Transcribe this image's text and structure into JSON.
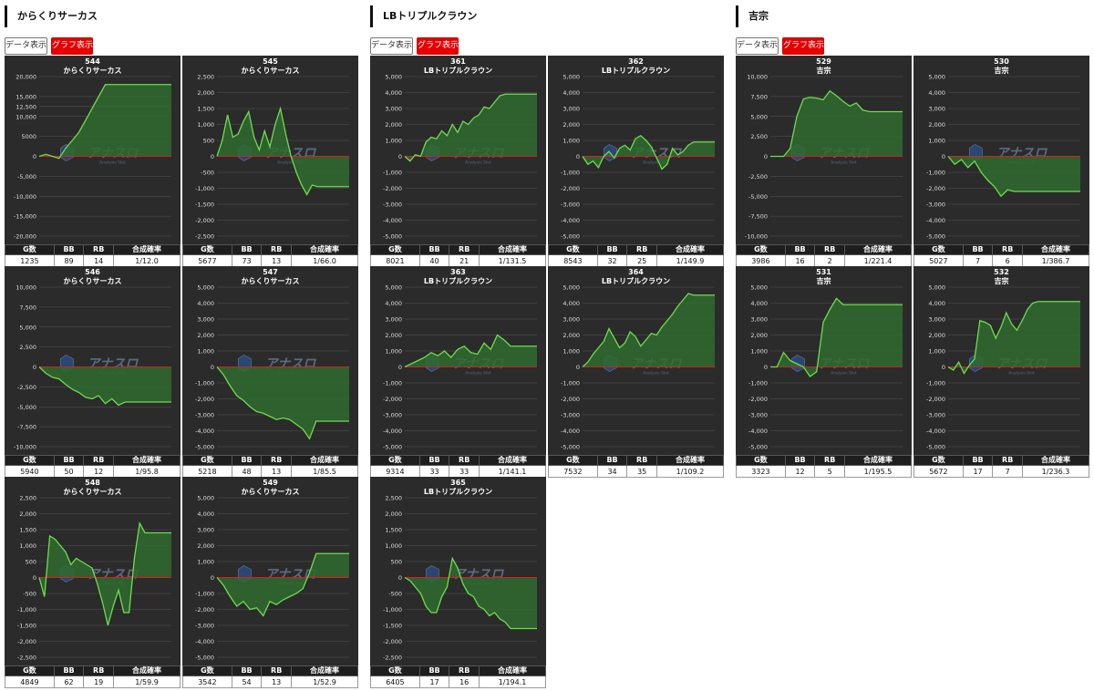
{
  "columns_labels": {
    "data_button": "データ表示",
    "graph_button": "グラフ表示"
  },
  "table_headers": [
    "G数",
    "BB",
    "RB",
    "合成確率"
  ],
  "colors": {
    "chart_bg": "#2b2b2b",
    "line": "#6fdc4f",
    "fill": "#2f6b2f",
    "zero_line": "#d42020",
    "active_button": "#e60000"
  },
  "watermark": {
    "text": "アナスロ",
    "subtext": "Analysis Slot"
  },
  "groups": [
    {
      "title": "からくりサーカス",
      "panels": [
        {
          "number": "544",
          "name": "からくりサーカス",
          "g": "1235",
          "bb": "89",
          "rb": "14",
          "rate": "1/12.0"
        },
        {
          "number": "545",
          "name": "からくりサーカス",
          "g": "5677",
          "bb": "73",
          "rb": "13",
          "rate": "1/66.0"
        },
        {
          "number": "546",
          "name": "からくりサーカス",
          "g": "5940",
          "bb": "50",
          "rb": "12",
          "rate": "1/95.8"
        },
        {
          "number": "547",
          "name": "からくりサーカス",
          "g": "5218",
          "bb": "48",
          "rb": "13",
          "rate": "1/85.5"
        },
        {
          "number": "548",
          "name": "からくりサーカス",
          "g": "4849",
          "bb": "62",
          "rb": "19",
          "rate": "1/59.9"
        },
        {
          "number": "549",
          "name": "からくりサーカス",
          "g": "3542",
          "bb": "54",
          "rb": "13",
          "rate": "1/52.9"
        }
      ]
    },
    {
      "title": "LBトリプルクラウン",
      "panels": [
        {
          "number": "361",
          "name": "LBトリプルクラウン",
          "g": "8021",
          "bb": "40",
          "rb": "21",
          "rate": "1/131.5"
        },
        {
          "number": "362",
          "name": "LBトリプルクラウン",
          "g": "8543",
          "bb": "32",
          "rb": "25",
          "rate": "1/149.9"
        },
        {
          "number": "363",
          "name": "LBトリプルクラウン",
          "g": "9314",
          "bb": "33",
          "rb": "33",
          "rate": "1/141.1"
        },
        {
          "number": "364",
          "name": "LBトリプルクラウン",
          "g": "7532",
          "bb": "34",
          "rb": "35",
          "rate": "1/109.2"
        },
        {
          "number": "365",
          "name": "LBトリプルクラウン",
          "g": "6405",
          "bb": "17",
          "rb": "16",
          "rate": "1/194.1"
        }
      ]
    },
    {
      "title": "吉宗",
      "panels": [
        {
          "number": "529",
          "name": "吉宗",
          "g": "3986",
          "bb": "16",
          "rb": "2",
          "rate": "1/221.4"
        },
        {
          "number": "530",
          "name": "吉宗",
          "g": "5027",
          "bb": "7",
          "rb": "6",
          "rate": "1/386.7"
        },
        {
          "number": "531",
          "name": "吉宗",
          "g": "3323",
          "bb": "12",
          "rb": "5",
          "rate": "1/195.5"
        },
        {
          "number": "532",
          "name": "吉宗",
          "g": "5672",
          "bb": "17",
          "rb": "7",
          "rate": "1/236.3"
        }
      ]
    }
  ],
  "chart_data": [
    {
      "type": "area",
      "title": "544",
      "subtitle": "からくりサーカス",
      "ylim": [
        -20000,
        20000
      ],
      "yticks": [
        20000,
        15000,
        12500,
        10000,
        5000,
        0,
        -5000,
        -10000,
        -15000,
        -20000
      ],
      "yticklabels": [
        "20,000",
        "15,000",
        "12,500",
        "10,000",
        "5000",
        "0",
        "-5,000",
        "-10,000",
        "-15,000",
        "-20,000"
      ],
      "x": [
        0,
        0.05,
        0.1,
        0.15,
        0.2,
        0.25,
        0.3,
        0.35,
        0.4,
        0.45,
        0.5,
        0.55,
        0.6,
        1
      ],
      "values": [
        0,
        500,
        0,
        -500,
        2000,
        4000,
        6000,
        9000,
        12000,
        15000,
        18000,
        18000,
        18000,
        18000
      ]
    },
    {
      "type": "area",
      "title": "545",
      "subtitle": "からくりサーカス",
      "ylim": [
        -2500,
        2500
      ],
      "yticks": [
        2500,
        2000,
        1500,
        1000,
        500,
        0,
        -500,
        -1000,
        -1500,
        -2000,
        -2500
      ],
      "yticklabels": [
        "2,500",
        "2,000",
        "1,500",
        "1,000",
        "500",
        "0",
        "-500",
        "-1,000",
        "-1,500",
        "-2,000",
        "-2,500"
      ],
      "x": [
        0,
        0.04,
        0.08,
        0.12,
        0.16,
        0.2,
        0.24,
        0.28,
        0.32,
        0.36,
        0.4,
        0.44,
        0.48,
        0.52,
        0.56,
        0.6,
        0.64,
        0.68,
        0.72,
        0.76,
        0.8,
        1
      ],
      "values": [
        0,
        500,
        1300,
        600,
        700,
        1100,
        1400,
        600,
        200,
        800,
        300,
        1000,
        1500,
        700,
        0,
        -500,
        -900,
        -1200,
        -900,
        -950,
        -950,
        -950
      ]
    },
    {
      "type": "area",
      "title": "546",
      "subtitle": "からくりサーカス",
      "ylim": [
        -10000,
        10000
      ],
      "yticks": [
        10000,
        7500,
        5000,
        2500,
        0,
        -2500,
        -5000,
        -7500,
        -10000
      ],
      "yticklabels": [
        "10,000",
        "7,500",
        "5,000",
        "2,500",
        "0",
        "-2,500",
        "-5,000",
        "-7,500",
        "-10,000"
      ],
      "x": [
        0,
        0.05,
        0.1,
        0.15,
        0.2,
        0.25,
        0.3,
        0.35,
        0.4,
        0.45,
        0.5,
        0.55,
        0.6,
        0.65,
        0.7,
        1
      ],
      "values": [
        0,
        -800,
        -1300,
        -1500,
        -2200,
        -2800,
        -3200,
        -3800,
        -4000,
        -3600,
        -4600,
        -4000,
        -4800,
        -4400,
        -4400,
        -4400
      ]
    },
    {
      "type": "area",
      "title": "547",
      "subtitle": "からくりサーカス",
      "ylim": [
        -5000,
        5000
      ],
      "yticks": [
        5000,
        4000,
        3000,
        2000,
        1000,
        0,
        -1000,
        -2000,
        -3000,
        -4000,
        -5000
      ],
      "yticklabels": [
        "5,000",
        "4,000",
        "3,000",
        "2,000",
        "1,000",
        "0",
        "-1,000",
        "-2,000",
        "-3,000",
        "-4,000",
        "-5,000"
      ],
      "x": [
        0,
        0.05,
        0.1,
        0.15,
        0.2,
        0.25,
        0.3,
        0.35,
        0.4,
        0.45,
        0.5,
        0.55,
        0.6,
        0.65,
        0.7,
        0.75,
        1
      ],
      "values": [
        0,
        -500,
        -1200,
        -1800,
        -2100,
        -2500,
        -2800,
        -2900,
        -3100,
        -3300,
        -3200,
        -3300,
        -3600,
        -3900,
        -4500,
        -3400,
        -3400
      ]
    },
    {
      "type": "area",
      "title": "548",
      "subtitle": "からくりサーカス",
      "ylim": [
        -2500,
        2500
      ],
      "yticks": [
        2500,
        2000,
        1500,
        1000,
        500,
        0,
        -500,
        -1000,
        -1500,
        -2000,
        -2500
      ],
      "yticklabels": [
        "2,500",
        "2,000",
        "1,500",
        "1,000",
        "500",
        "0",
        "-500",
        "-1,000",
        "-1,500",
        "-2,000",
        "-2,500"
      ],
      "x": [
        0,
        0.04,
        0.08,
        0.12,
        0.16,
        0.2,
        0.24,
        0.28,
        0.32,
        0.36,
        0.4,
        0.44,
        0.48,
        0.52,
        0.56,
        0.6,
        0.64,
        0.68,
        0.72,
        0.76,
        0.8,
        0.84,
        1
      ],
      "values": [
        0,
        -600,
        1300,
        1200,
        1000,
        800,
        400,
        600,
        500,
        400,
        300,
        -200,
        -800,
        -1500,
        -900,
        -400,
        -1100,
        -1100,
        600,
        1700,
        1400,
        1400,
        1400
      ]
    },
    {
      "type": "area",
      "title": "549",
      "subtitle": "からくりサーカス",
      "ylim": [
        -5000,
        5000
      ],
      "yticks": [
        5000,
        4000,
        3000,
        2000,
        1000,
        0,
        -1000,
        -2000,
        -3000,
        -4000,
        -5000
      ],
      "yticklabels": [
        "5,000",
        "4,000",
        "3,000",
        "2,000",
        "1,000",
        "0",
        "-1,000",
        "-2,000",
        "-3,000",
        "-4,000",
        "-5,000"
      ],
      "x": [
        0,
        0.05,
        0.1,
        0.15,
        0.2,
        0.25,
        0.3,
        0.35,
        0.4,
        0.45,
        0.5,
        0.55,
        0.6,
        0.65,
        0.7,
        0.75,
        0.8,
        1
      ],
      "values": [
        0,
        -500,
        -1200,
        -1800,
        -1500,
        -2000,
        -1900,
        -2400,
        -1500,
        -1700,
        -1400,
        -1200,
        -1000,
        -700,
        300,
        1500,
        1500,
        1500
      ]
    },
    {
      "type": "area",
      "title": "361",
      "subtitle": "LBトリプルクラウン",
      "ylim": [
        -5000,
        5000
      ],
      "yticks": [
        5000,
        4000,
        3000,
        2000,
        1000,
        0,
        -1000,
        -2000,
        -3000,
        -4000,
        -5000
      ],
      "yticklabels": [
        "5,000",
        "4,000",
        "3,000",
        "2,000",
        "1,000",
        "0",
        "-1,000",
        "-2,000",
        "-3,000",
        "-4,000",
        "-5,000"
      ],
      "x": [
        0,
        0.04,
        0.08,
        0.12,
        0.16,
        0.2,
        0.24,
        0.28,
        0.32,
        0.36,
        0.4,
        0.44,
        0.48,
        0.52,
        0.56,
        0.6,
        0.64,
        0.68,
        0.72,
        0.76,
        0.8,
        1
      ],
      "values": [
        0,
        -300,
        100,
        0,
        900,
        1200,
        1100,
        1600,
        1300,
        2000,
        1500,
        2200,
        2000,
        2400,
        2600,
        3100,
        3000,
        3400,
        3800,
        3900,
        3900,
        3900
      ]
    },
    {
      "type": "area",
      "title": "362",
      "subtitle": "LBトリプルクラウン",
      "ylim": [
        -5000,
        5000
      ],
      "yticks": [
        5000,
        4000,
        3000,
        2000,
        1000,
        0,
        -1000,
        -2000,
        -3000,
        -4000,
        -5000
      ],
      "yticklabels": [
        "5,000",
        "4,000",
        "3,000",
        "2,000",
        "1,000",
        "0",
        "-1,000",
        "-2,000",
        "-3,000",
        "-4,000",
        "-5,000"
      ],
      "x": [
        0,
        0.04,
        0.08,
        0.12,
        0.16,
        0.2,
        0.24,
        0.28,
        0.32,
        0.36,
        0.4,
        0.44,
        0.48,
        0.52,
        0.56,
        0.6,
        0.64,
        0.68,
        0.72,
        0.76,
        0.8,
        0.84,
        0.88,
        1
      ],
      "values": [
        0,
        -500,
        -300,
        -700,
        0,
        300,
        -100,
        500,
        700,
        400,
        1100,
        1300,
        1000,
        600,
        -100,
        -800,
        -500,
        500,
        100,
        300,
        700,
        900,
        900,
        900
      ]
    },
    {
      "type": "area",
      "title": "363",
      "subtitle": "LBトリプルクラウン",
      "ylim": [
        -5000,
        5000
      ],
      "yticks": [
        5000,
        4000,
        3000,
        2000,
        1000,
        0,
        -1000,
        -2000,
        -3000,
        -4000,
        -5000
      ],
      "yticklabels": [
        "5,000",
        "4,000",
        "3,000",
        "2,000",
        "1,000",
        "0",
        "-1,000",
        "-2,000",
        "-3,000",
        "-4,000",
        "-5,000"
      ],
      "x": [
        0,
        0.05,
        0.1,
        0.15,
        0.2,
        0.25,
        0.3,
        0.35,
        0.4,
        0.45,
        0.5,
        0.55,
        0.6,
        0.65,
        0.7,
        0.75,
        0.8,
        1
      ],
      "values": [
        0,
        200,
        400,
        600,
        900,
        700,
        1000,
        600,
        1100,
        1300,
        900,
        800,
        1500,
        1100,
        2000,
        1700,
        1300,
        1300
      ]
    },
    {
      "type": "area",
      "title": "364",
      "subtitle": "LBトリプルクラウン",
      "ylim": [
        -5000,
        5000
      ],
      "yticks": [
        5000,
        4000,
        3000,
        2000,
        1000,
        0,
        -1000,
        -2000,
        -3000,
        -4000,
        -5000
      ],
      "yticklabels": [
        "5,000",
        "4,000",
        "3,000",
        "2,000",
        "1,000",
        "0",
        "-1,000",
        "-2,000",
        "-3,000",
        "-4,000",
        "-5,000"
      ],
      "x": [
        0,
        0.04,
        0.08,
        0.12,
        0.16,
        0.2,
        0.24,
        0.28,
        0.32,
        0.36,
        0.4,
        0.44,
        0.48,
        0.52,
        0.56,
        0.6,
        0.64,
        0.68,
        0.72,
        0.76,
        0.8,
        0.84,
        1
      ],
      "values": [
        0,
        300,
        800,
        1200,
        1600,
        2400,
        1800,
        1200,
        1500,
        2200,
        1900,
        1300,
        1700,
        2100,
        2000,
        2500,
        2900,
        3300,
        3800,
        4200,
        4600,
        4500,
        4500
      ]
    },
    {
      "type": "area",
      "title": "365",
      "subtitle": "LBトリプルクラウン",
      "ylim": [
        -2500,
        2500
      ],
      "yticks": [
        2500,
        2000,
        1500,
        1000,
        500,
        0,
        -500,
        -1000,
        -1500,
        -2000,
        -2500
      ],
      "yticklabels": [
        "2,500",
        "2,000",
        "1,500",
        "1,000",
        "500",
        "0",
        "-500",
        "-1,000",
        "-1,500",
        "-2,000",
        "-2,500"
      ],
      "x": [
        0,
        0.04,
        0.08,
        0.12,
        0.16,
        0.2,
        0.24,
        0.28,
        0.32,
        0.36,
        0.4,
        0.44,
        0.48,
        0.52,
        0.56,
        0.6,
        0.64,
        0.68,
        0.72,
        0.76,
        0.8,
        0.84,
        1
      ],
      "values": [
        0,
        -100,
        -300,
        -500,
        -900,
        -1100,
        -1100,
        -600,
        -300,
        600,
        300,
        -200,
        -500,
        -600,
        -900,
        -1000,
        -1200,
        -1100,
        -1300,
        -1400,
        -1600,
        -1600,
        -1600
      ]
    },
    {
      "type": "area",
      "title": "529",
      "subtitle": "吉宗",
      "ylim": [
        -10000,
        10000
      ],
      "yticks": [
        10000,
        7500,
        5000,
        2500,
        0,
        -2500,
        -5000,
        -7500,
        -10000
      ],
      "yticklabels": [
        "10,000",
        "7,500",
        "5,000",
        "2,500",
        "0",
        "-2,500",
        "-5,000",
        "-7,500",
        "-10,000"
      ],
      "x": [
        0,
        0.05,
        0.1,
        0.15,
        0.2,
        0.25,
        0.3,
        0.35,
        0.4,
        0.45,
        0.5,
        0.55,
        0.6,
        0.65,
        0.7,
        0.75,
        0.8,
        1
      ],
      "values": [
        0,
        0,
        0,
        1000,
        5000,
        7200,
        7400,
        7300,
        7100,
        8200,
        7600,
        6900,
        6300,
        6700,
        5800,
        5600,
        5600,
        5600
      ]
    },
    {
      "type": "area",
      "title": "530",
      "subtitle": "吉宗",
      "ylim": [
        -5000,
        5000
      ],
      "yticks": [
        5000,
        4000,
        3000,
        2000,
        1000,
        0,
        -1000,
        -2000,
        -3000,
        -4000,
        -5000
      ],
      "yticklabels": [
        "5,000",
        "4,000",
        "3,000",
        "2,000",
        "1,000",
        "0",
        "-1,000",
        "-2,000",
        "-3,000",
        "-4,000",
        "-5,000"
      ],
      "x": [
        0,
        0.05,
        0.1,
        0.15,
        0.2,
        0.25,
        0.3,
        0.35,
        0.4,
        0.45,
        0.5,
        0.55,
        0.6,
        1
      ],
      "values": [
        0,
        -500,
        -200,
        -700,
        -300,
        -1000,
        -1500,
        -1900,
        -2500,
        -2100,
        -2200,
        -2200,
        -2200,
        -2200
      ]
    },
    {
      "type": "area",
      "title": "531",
      "subtitle": "吉宗",
      "ylim": [
        -5000,
        5000
      ],
      "yticks": [
        5000,
        4000,
        3000,
        2000,
        1000,
        0,
        -1000,
        -2000,
        -3000,
        -4000,
        -5000
      ],
      "yticklabels": [
        "5,000",
        "4,000",
        "3,000",
        "2,000",
        "1,000",
        "0",
        "-1,000",
        "-2,000",
        "-3,000",
        "-4,000",
        "-5,000"
      ],
      "x": [
        0,
        0.05,
        0.1,
        0.15,
        0.2,
        0.25,
        0.3,
        0.35,
        0.4,
        0.45,
        0.5,
        0.55,
        0.6,
        0.65,
        0.7,
        1
      ],
      "values": [
        0,
        0,
        900,
        400,
        200,
        0,
        -600,
        -300,
        2800,
        3600,
        4300,
        3900,
        3900,
        3900,
        3900,
        3900
      ]
    },
    {
      "type": "area",
      "title": "532",
      "subtitle": "吉宗",
      "ylim": [
        -5000,
        5000
      ],
      "yticks": [
        5000,
        4000,
        3000,
        2000,
        1000,
        0,
        -1000,
        -2000,
        -3000,
        -4000,
        -5000
      ],
      "yticklabels": [
        "5,000",
        "4,000",
        "3,000",
        "2,000",
        "1,000",
        "0",
        "-1,000",
        "-2,000",
        "-3,000",
        "-4,000",
        "-5,000"
      ],
      "x": [
        0,
        0.04,
        0.08,
        0.12,
        0.16,
        0.2,
        0.24,
        0.28,
        0.32,
        0.36,
        0.4,
        0.44,
        0.48,
        0.52,
        0.56,
        0.6,
        0.64,
        0.68,
        0.72,
        0.76,
        1
      ],
      "values": [
        0,
        -200,
        300,
        -400,
        100,
        500,
        2900,
        2800,
        2600,
        1800,
        2500,
        3400,
        2700,
        2300,
        2900,
        3600,
        4000,
        4100,
        4100,
        4100,
        4100
      ]
    }
  ]
}
